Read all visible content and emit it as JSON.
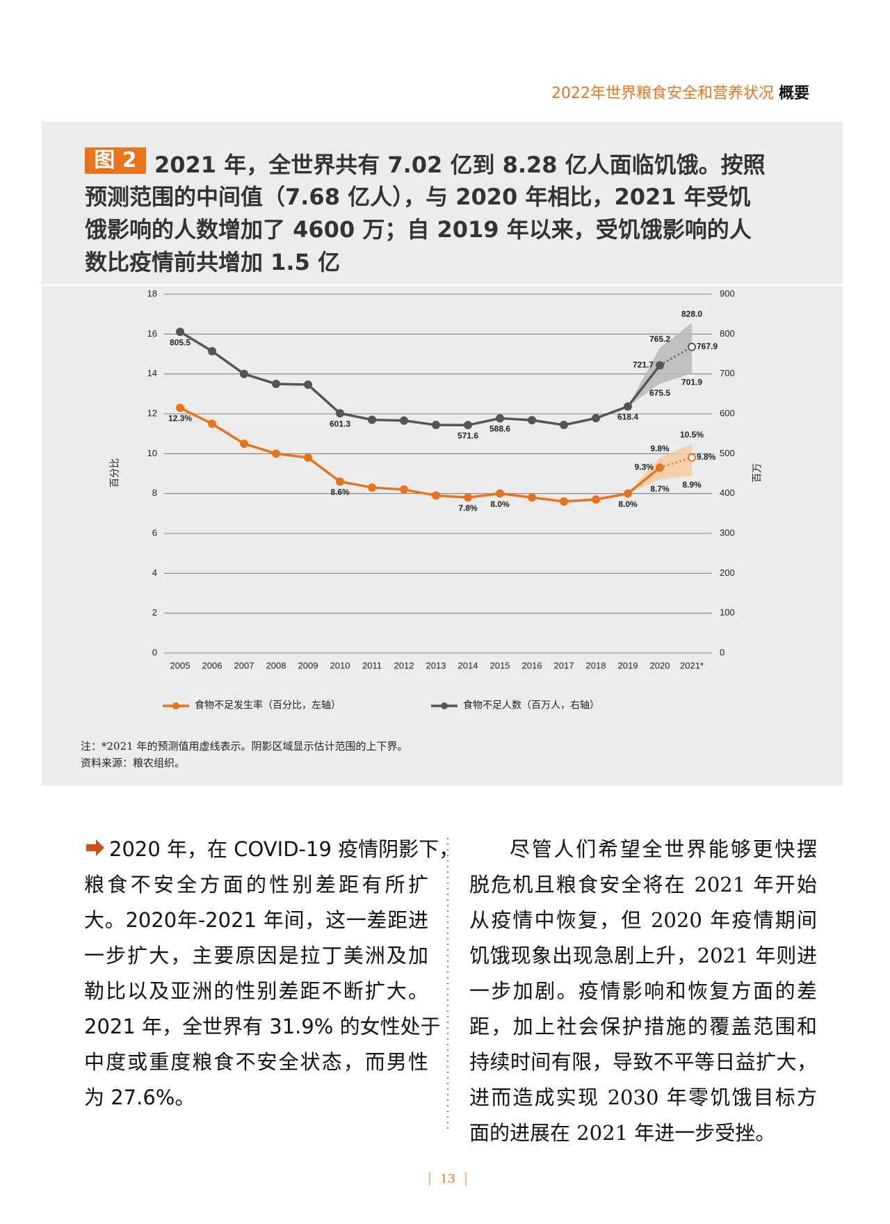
{
  "header": {
    "title": "2022年世界粮食安全和营养状况",
    "section": "概要"
  },
  "figure": {
    "label": "图 2",
    "title_lines": [
      "2021 年，全世界共有 7.02 亿到 8.28 亿人面临饥饿。按照",
      "预测范围的中间值（7.68 亿人），与 2020 年相比，2021 年受饥",
      "饿影响的人数增加了 4600 万；自 2019 年以来，受饥饿影响的人",
      "数比疫情前共增加 1.5 亿"
    ],
    "note": "注：*2021 年的预测值用虚线表示。阴影区域显示估计范围的上下界。",
    "source": "资料来源：粮农组织。"
  },
  "chart_data": {
    "type": "line",
    "categories": [
      "2005",
      "2006",
      "2007",
      "2008",
      "2009",
      "2010",
      "2011",
      "2012",
      "2013",
      "2014",
      "2015",
      "2016",
      "2017",
      "2018",
      "2019",
      "2020",
      "2021*"
    ],
    "ylim": [
      0,
      18
    ],
    "yticks": [
      0,
      2,
      4,
      6,
      8,
      10,
      12,
      14,
      16,
      18
    ],
    "ylabel": "百分比",
    "y2lim": [
      0,
      900
    ],
    "y2ticks": [
      0,
      100,
      200,
      300,
      400,
      500,
      600,
      700,
      800,
      900
    ],
    "y2label": "百万",
    "grid": true,
    "series": [
      {
        "name": "食物不足发生率（百分比，左轴）",
        "color": "#e8731a",
        "band_color": "#f7c9a0",
        "values": [
          12.3,
          11.5,
          10.5,
          10.0,
          9.8,
          8.6,
          8.3,
          8.2,
          7.9,
          7.8,
          8.0,
          7.8,
          7.6,
          7.7,
          8.0,
          9.3,
          9.8
        ],
        "value_labels": [
          "12.3%",
          null,
          null,
          null,
          null,
          "8.6%",
          null,
          null,
          null,
          "7.8%",
          "8.0%",
          null,
          null,
          null,
          "8.0%",
          "9.3%",
          "9.8%"
        ],
        "low": [
          null,
          null,
          null,
          null,
          null,
          null,
          null,
          null,
          null,
          null,
          null,
          null,
          null,
          null,
          8.0,
          8.7,
          8.9
        ],
        "low_labels": [
          null,
          null,
          null,
          null,
          null,
          null,
          null,
          null,
          null,
          null,
          null,
          null,
          null,
          null,
          null,
          "8.7%",
          "8.9%"
        ],
        "high": [
          null,
          null,
          null,
          null,
          null,
          null,
          null,
          null,
          null,
          null,
          null,
          null,
          null,
          null,
          8.0,
          9.8,
          10.5
        ],
        "high_labels": [
          null,
          null,
          null,
          null,
          null,
          null,
          null,
          null,
          null,
          null,
          null,
          null,
          null,
          null,
          null,
          "9.8%",
          "10.5%"
        ]
      },
      {
        "name": "食物不足人数（百万人，右轴）",
        "color": "#555555",
        "band_color": "#b8b8b8",
        "axis": "y2",
        "values": [
          805.5,
          757,
          700,
          675,
          673,
          601.3,
          585,
          583,
          572,
          571.6,
          588.6,
          584,
          572,
          589,
          618.4,
          721.7,
          767.9
        ],
        "value_labels": [
          "805.5",
          null,
          null,
          null,
          null,
          "601.3",
          null,
          null,
          null,
          "571.6",
          "588.6",
          null,
          null,
          null,
          "618.4",
          "721.7",
          "767.9"
        ],
        "low": [
          null,
          null,
          null,
          null,
          null,
          null,
          null,
          null,
          null,
          null,
          null,
          null,
          null,
          null,
          618.4,
          675.5,
          701.9
        ],
        "low_labels": [
          null,
          null,
          null,
          null,
          null,
          null,
          null,
          null,
          null,
          null,
          null,
          null,
          null,
          null,
          null,
          "675.5",
          "701.9"
        ],
        "high": [
          null,
          null,
          null,
          null,
          null,
          null,
          null,
          null,
          null,
          null,
          null,
          null,
          null,
          null,
          618.4,
          765.2,
          828.0
        ],
        "high_labels": [
          null,
          null,
          null,
          null,
          null,
          null,
          null,
          null,
          null,
          null,
          null,
          null,
          null,
          null,
          null,
          "765.2",
          "828.0"
        ]
      }
    ]
  },
  "body": {
    "left_lines": [
      "2020 年，在 COVID-19 疫情阴影下，",
      "粮食不安全方面的性别差距有所扩",
      "大。2020年-2021 年间，这一差距进",
      "一步扩大，主要原因是拉丁美洲及加",
      "勒比以及亚洲的性别差距不断扩大。",
      "2021 年，全世界有 31.9% 的女性处于",
      "中度或重度粮食不安全状态，而男性",
      "为 27.6%。"
    ],
    "right_lines": [
      "尽管人们希望全世界能够更快摆",
      "脱危机且粮食安全将在 2021 年开始",
      "从疫情中恢复，但 2020 年疫情期间",
      "饥饿现象出现急剧上升，2021 年则进",
      "一步加剧。疫情影响和恢复方面的差",
      "距，加上社会保护措施的覆盖范围和",
      "持续时间有限，导致不平等日益扩大，",
      "进而造成实现 2030 年零饥饿目标方",
      "面的进展在 2021 年进一步受挫。"
    ]
  },
  "page_number": "13"
}
